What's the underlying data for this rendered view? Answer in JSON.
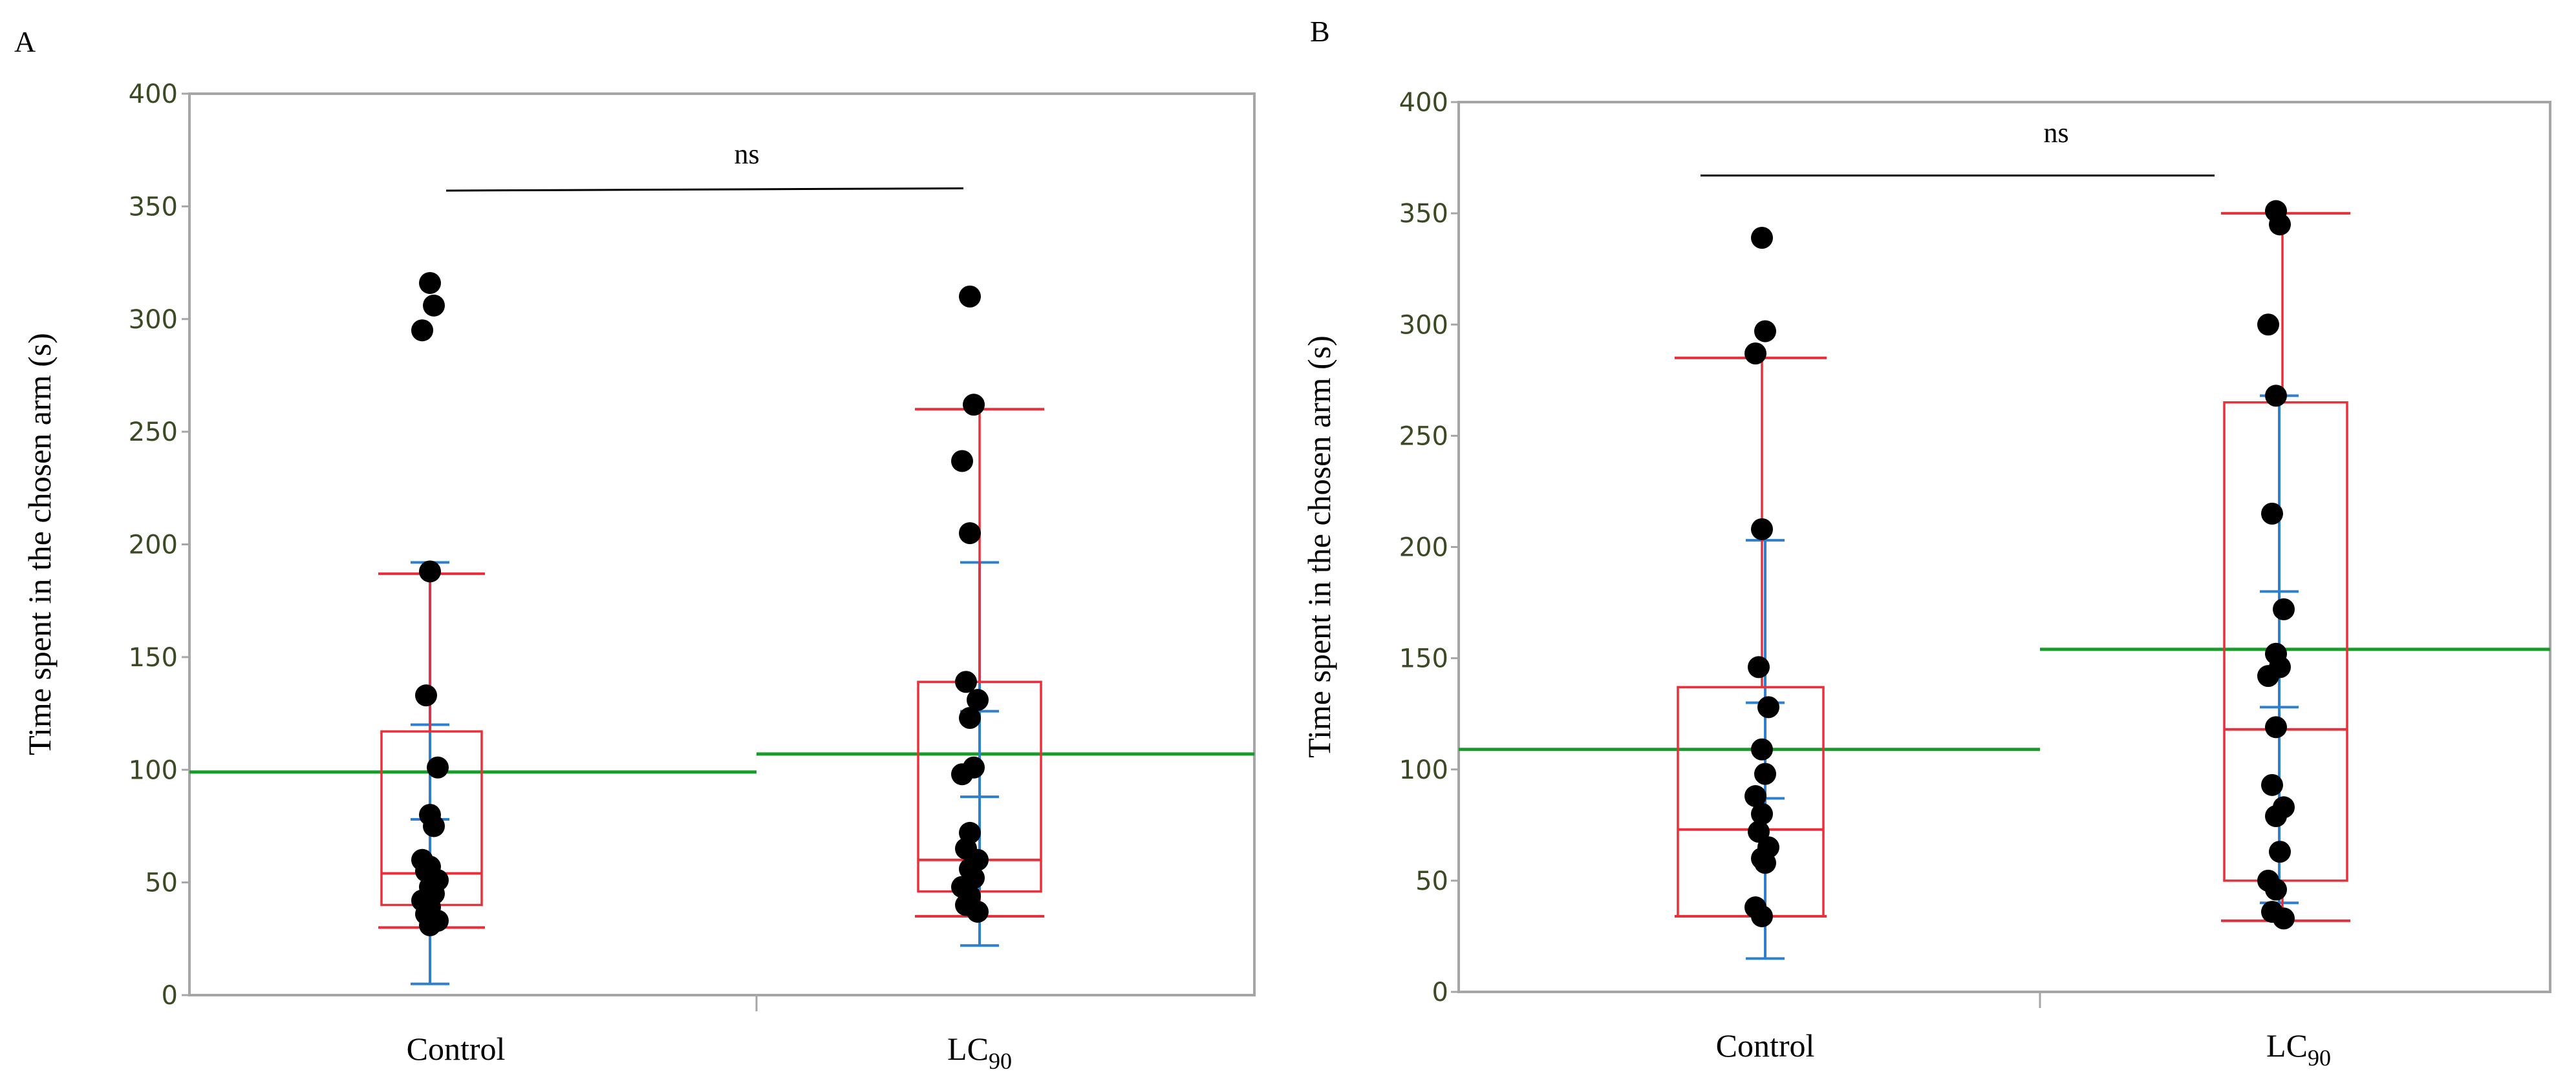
{
  "colors": {
    "box": "#e8303a",
    "mean_line": "#1a9a2a",
    "error_bar": "#2f7fd0",
    "points": "#000000",
    "frame": "#a6a6a6",
    "ytick_text": "#3a4a22"
  },
  "chart_data": [
    {
      "panel": "A",
      "type": "box",
      "ylabel": "Time spent in the chosen arm (s)",
      "ylim": [
        0,
        400
      ],
      "yticks": [
        0,
        50,
        100,
        150,
        200,
        250,
        300,
        350,
        400
      ],
      "categories": [
        "Control",
        "LC",
        "90"
      ],
      "significance": {
        "label": "ns",
        "y": 357,
        "y_right": 358
      },
      "groups": [
        {
          "name": "Control",
          "box": {
            "q1": 40,
            "median": 54,
            "q3": 117,
            "whisker_low": 30,
            "whisker_high": 187
          },
          "mean": 99,
          "error_bar": {
            "low": 5,
            "high": 192,
            "inner_low": 78,
            "inner_high": 120
          },
          "points": [
            316,
            306,
            295,
            188,
            133,
            101,
            80,
            75,
            60,
            57,
            55,
            51,
            48,
            45,
            42,
            39,
            36,
            33,
            31
          ]
        },
        {
          "name": "LC90",
          "box": {
            "q1": 46,
            "median": 60,
            "q3": 139,
            "whisker_low": 35,
            "whisker_high": 260
          },
          "mean": 107,
          "error_bar": {
            "low": 22,
            "high": 192,
            "inner_low": 88,
            "inner_high": 126
          },
          "points": [
            310,
            262,
            237,
            205,
            139,
            131,
            123,
            101,
            98,
            72,
            65,
            60,
            56,
            52,
            48,
            44,
            40,
            37
          ]
        }
      ]
    },
    {
      "panel": "B",
      "type": "box",
      "ylabel": "Time spent in the chosen arm (s)",
      "ylim": [
        0,
        400
      ],
      "yticks": [
        0,
        50,
        100,
        150,
        200,
        250,
        300,
        350,
        400
      ],
      "categories": [
        "Control",
        "LC",
        "90"
      ],
      "significance": {
        "label": "ns",
        "y": 367,
        "y_right": 367
      },
      "groups": [
        {
          "name": "Control",
          "box": {
            "q1": 34,
            "median": 73,
            "q3": 137,
            "whisker_low": 34,
            "whisker_high": 285
          },
          "mean": 109,
          "error_bar": {
            "low": 15,
            "high": 203,
            "inner_low": 87,
            "inner_high": 130
          },
          "points": [
            339,
            297,
            287,
            208,
            146,
            128,
            109,
            98,
            88,
            80,
            72,
            65,
            60,
            58,
            38,
            34
          ]
        },
        {
          "name": "LC90",
          "box": {
            "q1": 50,
            "median": 118,
            "q3": 265,
            "whisker_low": 32,
            "whisker_high": 350
          },
          "mean": 154,
          "error_bar": {
            "low": 40,
            "high": 268,
            "inner_low": 128,
            "inner_high": 180
          },
          "points": [
            351,
            345,
            300,
            268,
            215,
            172,
            152,
            146,
            142,
            119,
            93,
            83,
            79,
            63,
            50,
            46,
            36,
            33
          ]
        }
      ]
    }
  ]
}
